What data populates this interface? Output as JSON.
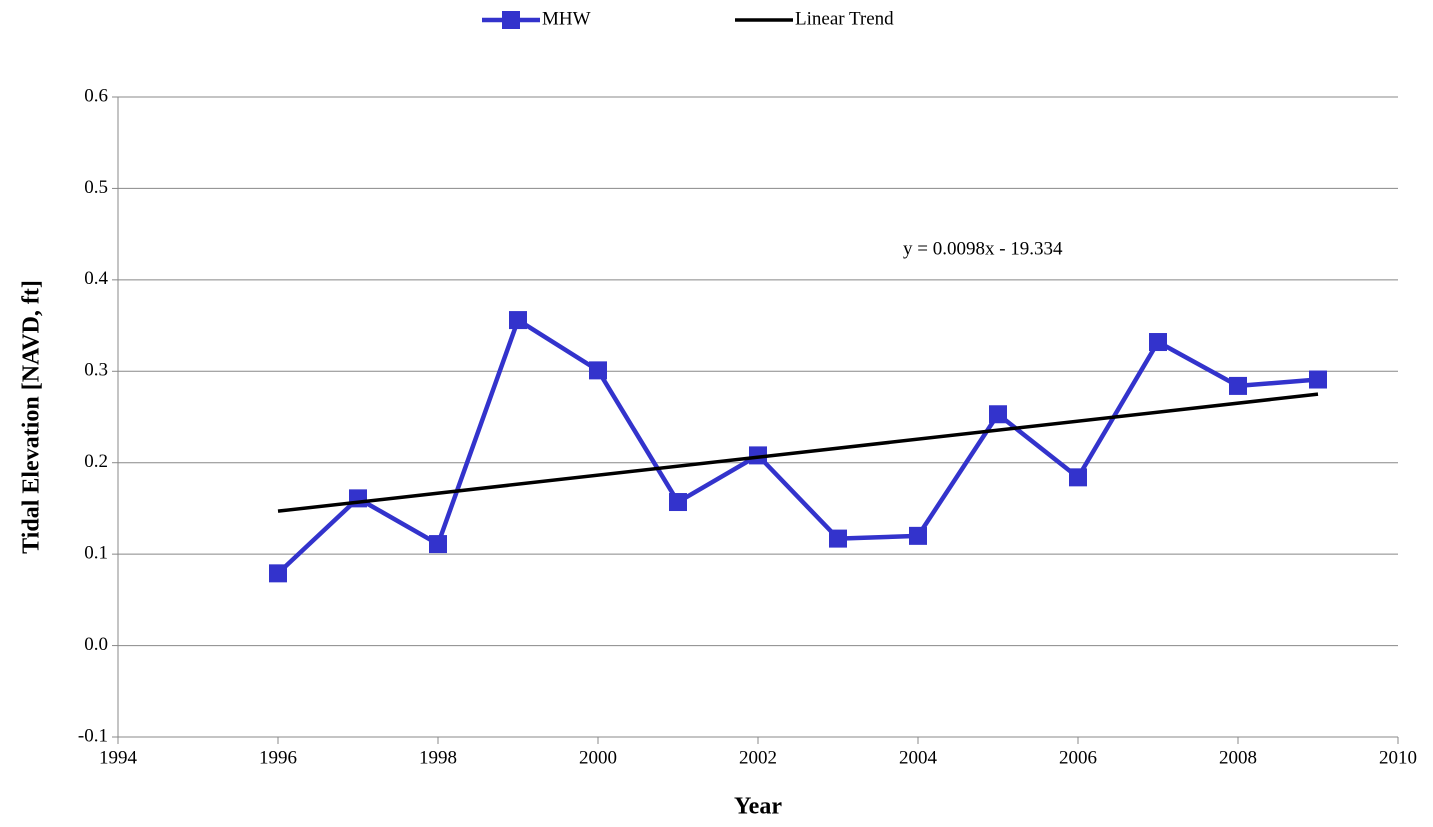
{
  "chart_data": {
    "type": "line",
    "x": [
      1996,
      1997,
      1998,
      1999,
      2000,
      2001,
      2002,
      2003,
      2004,
      2005,
      2006,
      2007,
      2008,
      2009
    ],
    "series": [
      {
        "name": "MHW",
        "color": "#3333cc",
        "values": [
          0.079,
          0.161,
          0.111,
          0.356,
          0.301,
          0.157,
          0.208,
          0.117,
          0.12,
          0.253,
          0.184,
          0.332,
          0.284,
          0.291
        ]
      },
      {
        "name": "Linear Trend",
        "color": "#000000",
        "x": [
          1996,
          2009
        ],
        "values": [
          0.147,
          0.275
        ]
      }
    ],
    "annotation": "y = 0.0098x - 19.334",
    "xlabel": "Year",
    "ylabel": "Tidal  Elevation [NAVD, ft]",
    "xlim": [
      1994,
      2010
    ],
    "xticks": [
      1994,
      1996,
      1998,
      2000,
      2002,
      2004,
      2006,
      2008,
      2010
    ],
    "ylim": [
      -0.1,
      0.6
    ],
    "yticks": [
      -0.1,
      {
        "value": 0,
        "label": "0.0"
      },
      0.1,
      0.2,
      0.3,
      0.4,
      0.5,
      0.6
    ],
    "grid": true,
    "legend": "top"
  }
}
